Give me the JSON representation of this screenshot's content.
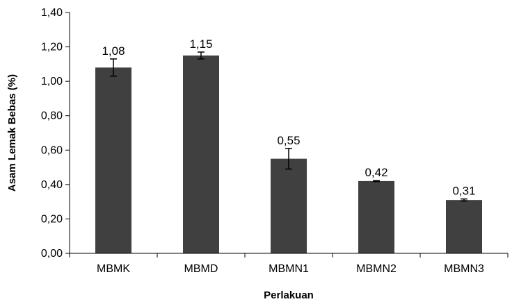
{
  "chart_data": {
    "type": "bar",
    "title": "",
    "xlabel": "Perlakuan",
    "ylabel": "Asam Lemak Bebas (%)",
    "categories": [
      "MBMK",
      "MBMD",
      "MBMN1",
      "MBMN2",
      "MBMN3"
    ],
    "values": [
      1.08,
      1.15,
      0.55,
      0.42,
      0.31
    ],
    "value_labels": [
      "1,08",
      "1,15",
      "0,55",
      "0,42",
      "0,31"
    ],
    "error": [
      0.05,
      0.02,
      0.06,
      0.003,
      0.006
    ],
    "ylim": [
      0,
      1.4
    ],
    "yticks": [
      0,
      0.2,
      0.4,
      0.6,
      0.8,
      1.0,
      1.2,
      1.4
    ],
    "ytick_labels": [
      "0,00",
      "0,20",
      "0,40",
      "0,60",
      "0,80",
      "1,00",
      "1,20",
      "1,40"
    ],
    "grid": false,
    "legend": "none",
    "bar_color": "#404040",
    "axis_color": "#000000"
  }
}
